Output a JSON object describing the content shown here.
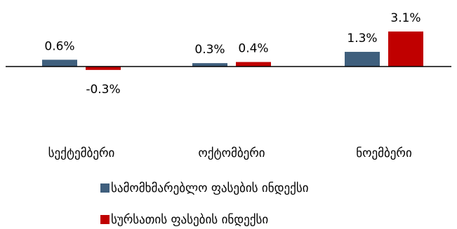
{
  "chart_data": {
    "type": "bar",
    "categories": [
      "სექტემბერი",
      "ოქტომბერი",
      "ნოემბერი"
    ],
    "series": [
      {
        "name": "სამომხმარებლო ფასების ინდექსი",
        "values": [
          0.6,
          0.3,
          1.3
        ],
        "labels": [
          "0.6%",
          "0.3%",
          "1.3%"
        ],
        "color": "#3f5f7d"
      },
      {
        "name": "სურსათის ფასების ინდექსი",
        "values": [
          -0.3,
          0.4,
          3.1
        ],
        "labels": [
          "-0.3%",
          "0.4%",
          "3.1%"
        ],
        "color": "#c00000"
      }
    ],
    "ylim": [
      -0.3,
      3.1
    ],
    "title": "",
    "xlabel": "",
    "ylabel": "",
    "grid": false,
    "legend": "bottom",
    "unit": "%"
  }
}
